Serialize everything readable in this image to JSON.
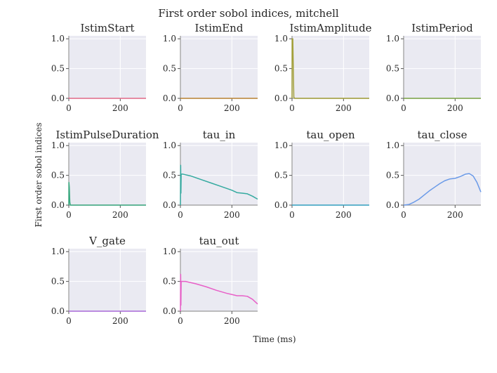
{
  "chart_data": {
    "type": "line",
    "title": "First order sobol indices, mitchell",
    "xlabel": "Time (ms)",
    "ylabel": "First order sobol indices",
    "xlim": [
      0,
      300
    ],
    "ylim": [
      0,
      1.05
    ],
    "xticks": [
      0,
      200
    ],
    "yticks": [
      0.0,
      0.5,
      1.0
    ],
    "grid": true,
    "panels": [
      {
        "name": "IstimStart",
        "color": "#e8708f",
        "points": [
          [
            0,
            0.0
          ],
          [
            1,
            0.01
          ],
          [
            2,
            0.0
          ],
          [
            300,
            0.0
          ]
        ]
      },
      {
        "name": "IstimEnd",
        "color": "#c08a3a",
        "points": [
          [
            0,
            0.0
          ],
          [
            300,
            0.0
          ]
        ]
      },
      {
        "name": "IstimAmplitude",
        "color": "#a3a03a",
        "points": [
          [
            0,
            0.0
          ],
          [
            0.5,
            1.0
          ],
          [
            3,
            1.0
          ],
          [
            5,
            0.5
          ],
          [
            7,
            0.02
          ],
          [
            10,
            0.0
          ],
          [
            300,
            0.0
          ]
        ]
      },
      {
        "name": "IstimPeriod",
        "color": "#7fa84a",
        "points": [
          [
            0,
            0.0
          ],
          [
            300,
            0.0
          ]
        ]
      },
      {
        "name": "IstimPulseDuration",
        "color": "#3aaa80",
        "points": [
          [
            0,
            0.0
          ],
          [
            0.5,
            0.38
          ],
          [
            2,
            0.3
          ],
          [
            4,
            0.05
          ],
          [
            6,
            0.0
          ],
          [
            300,
            0.0
          ]
        ]
      },
      {
        "name": "tau_in",
        "color": "#35aaa0",
        "points": [
          [
            0,
            0.0
          ],
          [
            1,
            0.67
          ],
          [
            2,
            0.2
          ],
          [
            3,
            0.52
          ],
          [
            10,
            0.52
          ],
          [
            40,
            0.49
          ],
          [
            80,
            0.43
          ],
          [
            120,
            0.37
          ],
          [
            160,
            0.31
          ],
          [
            200,
            0.25
          ],
          [
            220,
            0.21
          ],
          [
            240,
            0.2
          ],
          [
            260,
            0.19
          ],
          [
            280,
            0.15
          ],
          [
            300,
            0.1
          ]
        ]
      },
      {
        "name": "tau_open",
        "color": "#3aa6c8",
        "points": [
          [
            0,
            0.0
          ],
          [
            300,
            0.0
          ]
        ]
      },
      {
        "name": "tau_close",
        "color": "#6a9ae8",
        "points": [
          [
            0,
            0.0
          ],
          [
            20,
            0.01
          ],
          [
            40,
            0.05
          ],
          [
            60,
            0.1
          ],
          [
            80,
            0.17
          ],
          [
            100,
            0.24
          ],
          [
            120,
            0.3
          ],
          [
            140,
            0.36
          ],
          [
            160,
            0.41
          ],
          [
            180,
            0.44
          ],
          [
            200,
            0.45
          ],
          [
            220,
            0.48
          ],
          [
            240,
            0.52
          ],
          [
            255,
            0.53
          ],
          [
            270,
            0.49
          ],
          [
            285,
            0.38
          ],
          [
            300,
            0.22
          ]
        ]
      },
      {
        "name": "V_gate",
        "color": "#b070e0",
        "points": [
          [
            0,
            0.0
          ],
          [
            300,
            0.0
          ]
        ]
      },
      {
        "name": "tau_out",
        "color": "#e860c8",
        "points": [
          [
            0,
            0.0
          ],
          [
            1,
            0.62
          ],
          [
            2,
            0.1
          ],
          [
            3,
            0.5
          ],
          [
            20,
            0.5
          ],
          [
            60,
            0.46
          ],
          [
            100,
            0.41
          ],
          [
            140,
            0.35
          ],
          [
            180,
            0.3
          ],
          [
            200,
            0.28
          ],
          [
            220,
            0.26
          ],
          [
            240,
            0.26
          ],
          [
            260,
            0.25
          ],
          [
            280,
            0.2
          ],
          [
            300,
            0.12
          ]
        ]
      }
    ]
  }
}
